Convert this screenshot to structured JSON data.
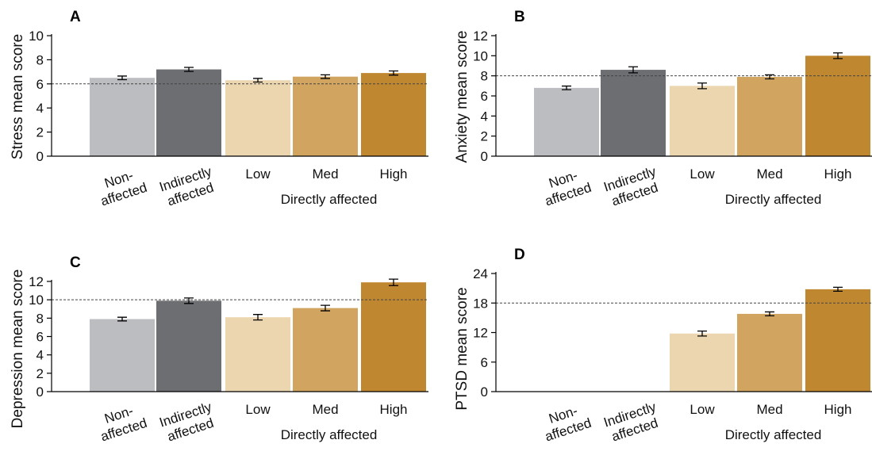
{
  "chart_data": [
    {
      "panel": "A",
      "type": "bar",
      "ylabel": "Stress mean score",
      "ylim": [
        0,
        10
      ],
      "yticks": [
        0,
        2,
        4,
        6,
        8,
        10
      ],
      "categories": [
        "Non-\naffected",
        "Indirectly\naffected",
        "Low",
        "Med",
        "High"
      ],
      "group_label": "Directly affected",
      "values": [
        6.5,
        7.2,
        6.3,
        6.6,
        6.9
      ],
      "errors": [
        0.15,
        0.17,
        0.15,
        0.15,
        0.17
      ],
      "reference_line": 6,
      "colors": [
        "#bcbdc0",
        "#6d6e71",
        "#ecd6b0",
        "#d1a460",
        "#bf8730"
      ]
    },
    {
      "panel": "B",
      "type": "bar",
      "ylabel": "Anxiety mean score",
      "ylim": [
        0,
        12
      ],
      "yticks": [
        0,
        2,
        4,
        6,
        8,
        10,
        12
      ],
      "categories": [
        "Non-\naffected",
        "Indirectly\naffected",
        "Low",
        "Med",
        "High"
      ],
      "group_label": "Directly affected",
      "values": [
        6.8,
        8.6,
        7.0,
        7.9,
        10.0
      ],
      "errors": [
        0.18,
        0.3,
        0.28,
        0.2,
        0.28
      ],
      "reference_line": 8,
      "colors": [
        "#bcbdc0",
        "#6d6e71",
        "#ecd6b0",
        "#d1a460",
        "#bf8730"
      ]
    },
    {
      "panel": "C",
      "type": "bar",
      "ylabel": "Depression mean score",
      "ylim": [
        0,
        12
      ],
      "yticks": [
        0,
        2,
        4,
        6,
        8,
        10,
        12
      ],
      "categories": [
        "Non-\naffected",
        "Indirectly\naffected",
        "Low",
        "Med",
        "High"
      ],
      "group_label": "Directly affected",
      "values": [
        7.9,
        9.9,
        8.1,
        9.1,
        11.9
      ],
      "errors": [
        0.2,
        0.3,
        0.3,
        0.3,
        0.35
      ],
      "reference_line": 10,
      "colors": [
        "#bcbdc0",
        "#6d6e71",
        "#ecd6b0",
        "#d1a460",
        "#bf8730"
      ]
    },
    {
      "panel": "D",
      "type": "bar",
      "ylabel": "PTSD mean score",
      "ylim": [
        0,
        24
      ],
      "yticks": [
        0,
        6,
        12,
        18,
        24
      ],
      "categories": [
        "Non-\naffected",
        "Indirectly\naffected",
        "Low",
        "Med",
        "High"
      ],
      "group_label": "Directly affected",
      "values": [
        null,
        null,
        11.8,
        15.8,
        20.8
      ],
      "errors": [
        null,
        null,
        0.5,
        0.4,
        0.4
      ],
      "reference_line": 18,
      "colors": [
        "#bcbdc0",
        "#6d6e71",
        "#ecd6b0",
        "#d1a460",
        "#bf8730"
      ]
    }
  ]
}
